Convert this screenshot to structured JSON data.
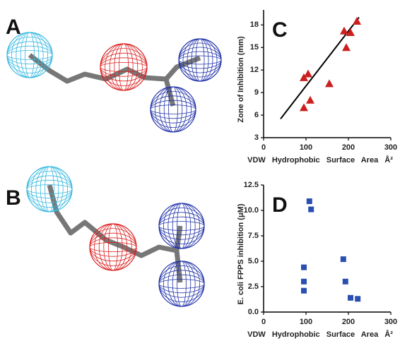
{
  "panel_labels": [
    "A",
    "B"
  ],
  "chart_data": [
    {
      "type": "scatter",
      "panel": "C",
      "xlabel": "VDW Hydrophobic Surface Area Å²",
      "ylabel": "Zone of Inhibition (mm)",
      "xlim": [
        0,
        300
      ],
      "xticks": [
        0,
        100,
        200,
        300
      ],
      "ylim": [
        3,
        20
      ],
      "yticks": [
        3,
        6,
        9,
        12,
        15,
        18
      ],
      "series": [
        {
          "marker": "triangle",
          "color": "#cc1f1f",
          "x": [
            95,
            105,
            95,
            110,
            155,
            190,
            195,
            205,
            220
          ],
          "values": [
            11,
            11.5,
            7,
            8,
            10.2,
            17.2,
            15,
            17,
            18.5
          ]
        }
      ],
      "trendline": {
        "color": "#000000",
        "x": [
          40,
          225
        ],
        "values": [
          5.5,
          19
        ]
      }
    },
    {
      "type": "scatter",
      "panel": "D",
      "xlabel": "VDW Hydrophobic Surface Area Å²",
      "ylabel": "E. coli FPPS inhibition (μM)",
      "xlim": [
        0,
        300
      ],
      "xticks": [
        0,
        100,
        200,
        300
      ],
      "ylim": [
        0,
        12.5
      ],
      "yticks": [
        {
          "value": 0,
          "label": "0.0"
        },
        2.5,
        {
          "value": 5,
          "label": "5.0"
        },
        7.5,
        {
          "value": 10,
          "label": "10.0"
        },
        12.5
      ],
      "series": [
        {
          "marker": "square",
          "color": "#2a4fb0",
          "x": [
            95,
            95,
            95,
            108,
            112,
            188,
            193,
            205,
            222
          ],
          "values": [
            4.4,
            3.0,
            2.1,
            10.9,
            10.1,
            5.2,
            3.0,
            1.4,
            1.3
          ]
        }
      ]
    }
  ]
}
